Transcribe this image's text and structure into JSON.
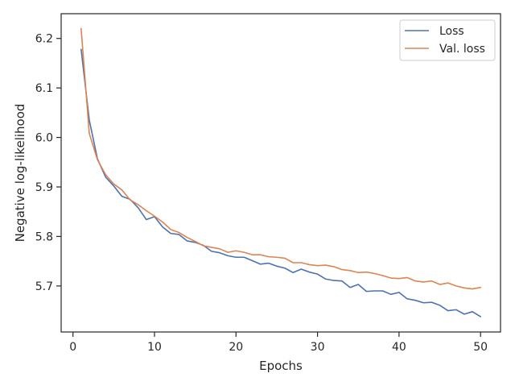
{
  "chart_data": {
    "type": "line",
    "title": "",
    "xlabel": "Epochs",
    "ylabel": "Negative log-likelihood",
    "xlim": [
      -1.45,
      52.45
    ],
    "ylim": [
      5.607,
      6.25
    ],
    "xticks": [
      0,
      10,
      20,
      30,
      40,
      50
    ],
    "yticks": [
      5.7,
      5.8,
      5.9,
      6.0,
      6.1,
      6.2
    ],
    "grid": false,
    "legend_position": "top-right",
    "x": [
      1,
      2,
      3,
      4,
      5,
      6,
      7,
      8,
      9,
      10,
      11,
      12,
      13,
      14,
      15,
      16,
      17,
      18,
      19,
      20,
      21,
      22,
      23,
      24,
      25,
      26,
      27,
      28,
      29,
      30,
      31,
      32,
      33,
      34,
      35,
      36,
      37,
      38,
      39,
      40,
      41,
      42,
      43,
      44,
      45,
      46,
      47,
      48,
      49,
      50
    ],
    "series": [
      {
        "name": "Loss",
        "color": "#4c72b0",
        "values": [
          6.178,
          6.035,
          5.957,
          5.92,
          5.902,
          5.881,
          5.875,
          5.858,
          5.834,
          5.84,
          5.819,
          5.806,
          5.804,
          5.791,
          5.788,
          5.782,
          5.77,
          5.767,
          5.761,
          5.758,
          5.758,
          5.751,
          5.744,
          5.746,
          5.74,
          5.736,
          5.727,
          5.734,
          5.728,
          5.724,
          5.714,
          5.711,
          5.71,
          5.697,
          5.703,
          5.689,
          5.69,
          5.69,
          5.683,
          5.687,
          5.674,
          5.671,
          5.666,
          5.667,
          5.661,
          5.65,
          5.652,
          5.643,
          5.648,
          5.638
        ]
      },
      {
        "name": "Val. loss",
        "color": "#dd8452",
        "values": [
          6.22,
          6.008,
          5.955,
          5.925,
          5.906,
          5.894,
          5.874,
          5.864,
          5.852,
          5.841,
          5.829,
          5.814,
          5.808,
          5.798,
          5.79,
          5.781,
          5.778,
          5.775,
          5.768,
          5.771,
          5.768,
          5.763,
          5.763,
          5.759,
          5.758,
          5.756,
          5.747,
          5.747,
          5.743,
          5.741,
          5.742,
          5.739,
          5.733,
          5.731,
          5.727,
          5.728,
          5.725,
          5.721,
          5.716,
          5.715,
          5.717,
          5.71,
          5.708,
          5.71,
          5.703,
          5.706,
          5.7,
          5.696,
          5.694,
          5.697
        ]
      }
    ]
  }
}
